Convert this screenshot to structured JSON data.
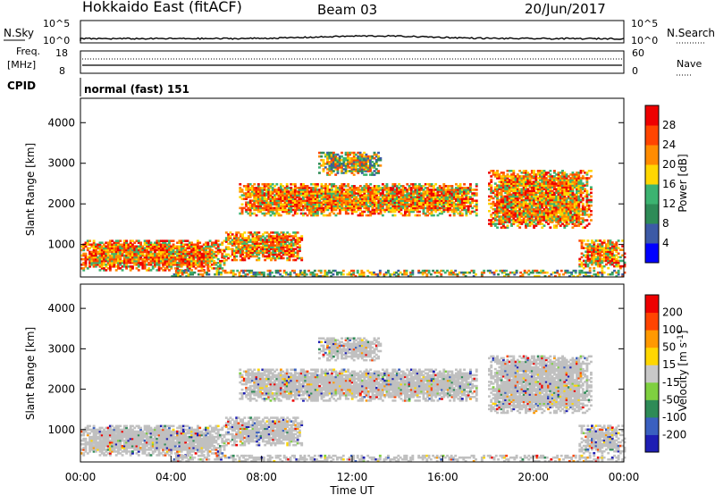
{
  "header": {
    "title": "Hokkaido East (fitACF)",
    "beam": "Beam 03",
    "date": "20/Jun/2017"
  },
  "noise_panel": {
    "left_label": "N.Sky",
    "right_label": "N.Search",
    "tick_top": "10^5",
    "tick_bottom": "10^0"
  },
  "freq_panel": {
    "left_label_1": "Freq.",
    "left_label_2": "[MHz]",
    "left_ticks": [
      "18",
      "8"
    ],
    "right_ticks": [
      "60",
      "0"
    ],
    "right_label": "Nave"
  },
  "cpid_panel": {
    "left_label": "CPID",
    "text": "normal (fast) 151"
  },
  "chart_data": [
    {
      "type": "heatmap",
      "title": "Power",
      "ylabel": "Slant Range [km]",
      "yticks": [
        "1000",
        "2000",
        "3000",
        "4000"
      ],
      "ylim": [
        200,
        4600
      ],
      "xlim": [
        0,
        24
      ],
      "colorbar": {
        "label": "Power [dB]",
        "ticks": [
          "4",
          "8",
          "12",
          "16",
          "20",
          "24",
          "28"
        ],
        "colors": [
          "#0000ff",
          "#3c5aa6",
          "#2e8b57",
          "#3cb371",
          "#ffd700",
          "#ff8c00",
          "#ff4500",
          "#ee0000"
        ]
      },
      "echo_regions": [
        {
          "t0": 0.0,
          "t1": 6.3,
          "r0": 350,
          "r1": 1100,
          "level": "high"
        },
        {
          "t0": 6.3,
          "t1": 9.8,
          "r0": 600,
          "r1": 1300,
          "level": "high"
        },
        {
          "t0": 7.0,
          "t1": 17.5,
          "r0": 1700,
          "r1": 2500,
          "level": "high"
        },
        {
          "t0": 10.5,
          "t1": 13.2,
          "r0": 2700,
          "r1": 3250,
          "level": "medium"
        },
        {
          "t0": 18.0,
          "t1": 22.5,
          "r0": 1400,
          "r1": 2800,
          "level": "high"
        },
        {
          "t0": 22.0,
          "t1": 24.0,
          "r0": 400,
          "r1": 1100,
          "level": "high"
        },
        {
          "t0": 4.0,
          "t1": 24.0,
          "r0": 200,
          "r1": 350,
          "level": "medium"
        }
      ]
    },
    {
      "type": "heatmap",
      "title": "Velocity",
      "ylabel": "Slant Range [km]",
      "xlabel": "Time UT",
      "yticks": [
        "1000",
        "2000",
        "3000",
        "4000"
      ],
      "xticks": [
        "00:00",
        "04:00",
        "08:00",
        "12:00",
        "16:00",
        "20:00",
        "00:00"
      ],
      "ylim": [
        200,
        4600
      ],
      "xlim": [
        0,
        24
      ],
      "colorbar": {
        "label": "Velocity [m s",
        "label_sup": "-1",
        "label_end": "]",
        "ticks": [
          "200",
          "100",
          "50",
          "15",
          "-15",
          "-50",
          "-100",
          "-200"
        ],
        "colors": [
          "#1e1eb4",
          "#3a60c0",
          "#2e8b57",
          "#7fd040",
          "#c8c8c8",
          "#ffd700",
          "#ff9900",
          "#ff4400",
          "#ee0000"
        ]
      }
    }
  ],
  "colors": {
    "ground_scatter": "#c0c0c0"
  }
}
